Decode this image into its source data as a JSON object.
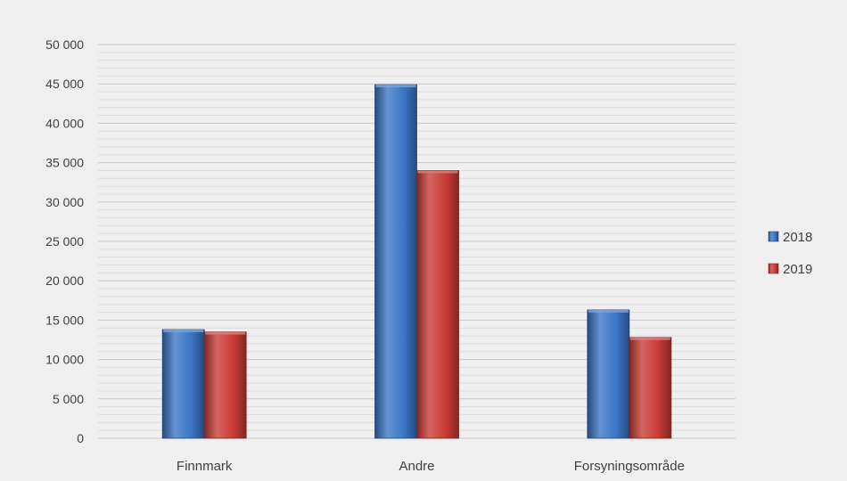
{
  "chart_data": {
    "type": "bar",
    "categories": [
      "Finnmark",
      "Andre",
      "Forsyningsområde"
    ],
    "series": [
      {
        "name": "2018",
        "values": [
          13800,
          44900,
          16300
        ],
        "color": "#3a74c4"
      },
      {
        "name": "2019",
        "values": [
          13500,
          34000,
          12800
        ],
        "color": "#c93a35"
      }
    ],
    "ylim": [
      0,
      50000
    ],
    "yticks": [
      "0",
      "5 000",
      "10 000",
      "15 000",
      "20 000",
      "25 000",
      "30 000",
      "35 000",
      "40 000",
      "45 000",
      "50 000"
    ],
    "ytick_values": [
      0,
      5000,
      10000,
      15000,
      20000,
      25000,
      30000,
      35000,
      40000,
      45000,
      50000
    ],
    "minor_grid_step": 1000,
    "grid": true,
    "legend": "right",
    "title": "",
    "xlabel": "",
    "ylabel": ""
  }
}
